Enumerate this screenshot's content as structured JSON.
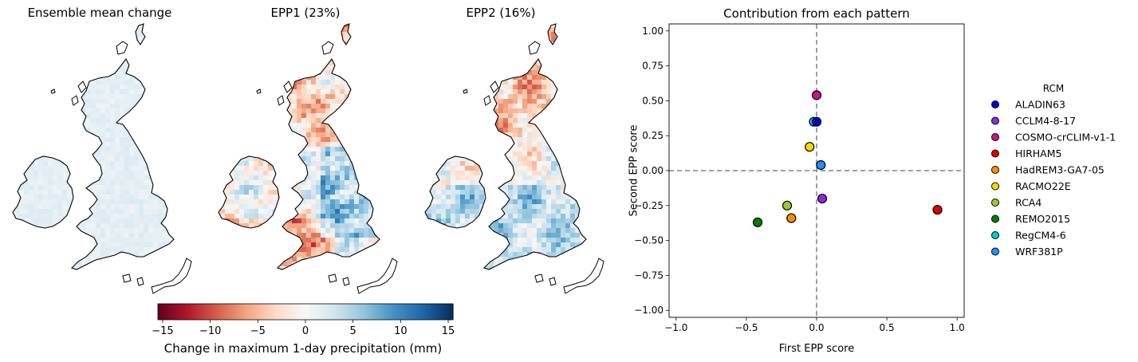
{
  "maps": [
    {
      "title": "Ensemble mean change",
      "pattern": "mean",
      "seed": 3
    },
    {
      "title": "EPP1 (23%)",
      "pattern": "epp1",
      "seed": 11
    },
    {
      "title": "EPP2 (16%)",
      "pattern": "epp2",
      "seed": 29
    }
  ],
  "colorbar": {
    "label": "Change in maximum 1-day precipitation (mm)",
    "ticks": [
      -15,
      -10,
      -5,
      0,
      5,
      10,
      15
    ],
    "range": [
      -15.5,
      15.5
    ],
    "colormap": "RdBu"
  },
  "chart_data": {
    "type": "scatter",
    "title": "Contribution from each pattern",
    "xlabel": "First EPP score",
    "ylabel": "Second EPP score",
    "xlim": [
      -1.05,
      1.05
    ],
    "ylim": [
      -1.05,
      1.05
    ],
    "xticks": [
      -1.0,
      -0.5,
      0.0,
      0.5,
      1.0
    ],
    "yticks": [
      1.0,
      0.75,
      0.5,
      0.25,
      0.0,
      -0.25,
      -0.5,
      -0.75,
      -1.0
    ],
    "grid": false,
    "reference_lines": {
      "x": 0,
      "y": 0,
      "style": "dashed",
      "color": "#808080"
    },
    "legend": {
      "title": "RCM",
      "placement": "outside-right"
    },
    "series": [
      {
        "name": "ALADIN63",
        "color": "#0000cc",
        "x": 0.0,
        "y": 0.35
      },
      {
        "name": "CCLM4-8-17",
        "color": "#8a2be2",
        "x": 0.04,
        "y": -0.2
      },
      {
        "name": "COSMO-crCLIM-v1-1",
        "color": "#c71585",
        "x": 0.0,
        "y": 0.54
      },
      {
        "name": "HIRHAM5",
        "color": "#e00000",
        "x": 0.86,
        "y": -0.28
      },
      {
        "name": "HadREM3-GA7-05",
        "color": "#ff8c00",
        "x": -0.18,
        "y": -0.34
      },
      {
        "name": "RACMO22E",
        "color": "#ffd700",
        "x": -0.05,
        "y": 0.17
      },
      {
        "name": "RCA4",
        "color": "#9acd32",
        "x": -0.21,
        "y": -0.25
      },
      {
        "name": "REMO2015",
        "color": "#008000",
        "x": -0.42,
        "y": -0.37
      },
      {
        "name": "RegCM4-6",
        "color": "#00ced1",
        "x": -0.02,
        "y": 0.35
      },
      {
        "name": "WRF381P",
        "color": "#1e90ff",
        "x": 0.03,
        "y": 0.04
      }
    ]
  }
}
